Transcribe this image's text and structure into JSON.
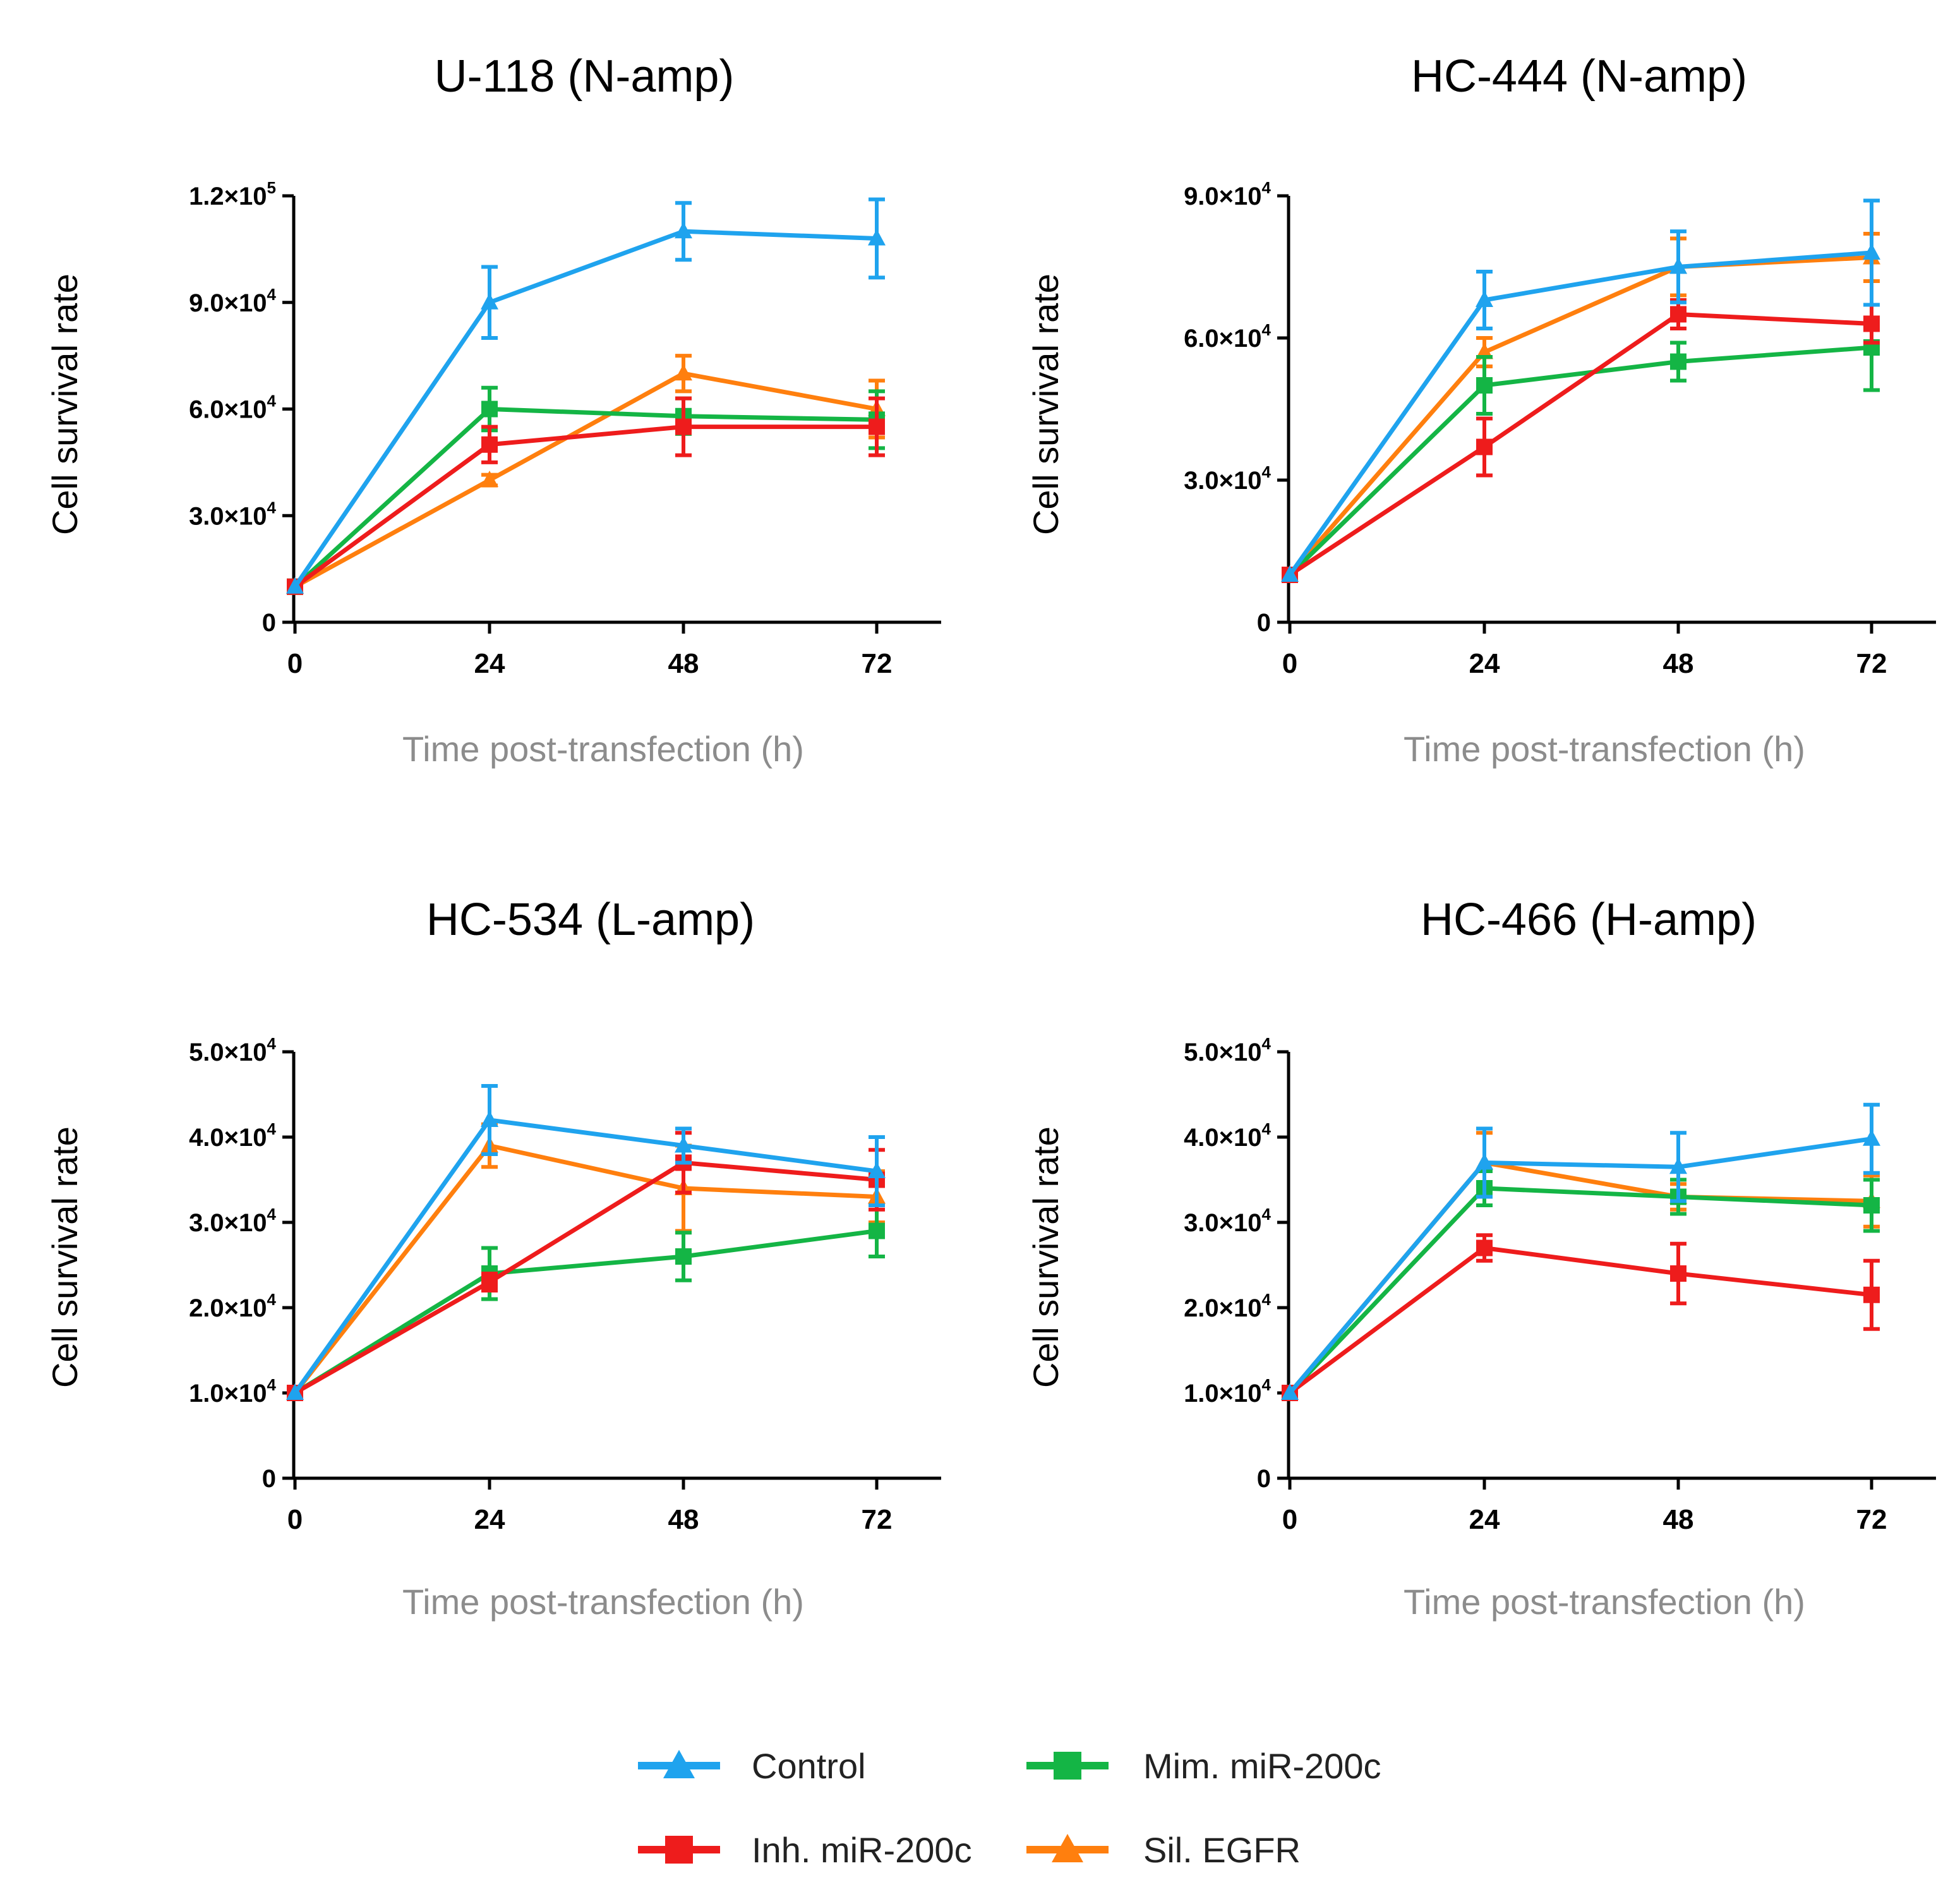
{
  "figure": {
    "xlabel": "Time post-transfection (h)",
    "ylabel": "Cell survival rate",
    "legend": [
      {
        "name": "Control",
        "color": "#1fa3ee",
        "marker": "triangle"
      },
      {
        "name": "Mim. miR-200c",
        "color": "#14b545",
        "marker": "square"
      },
      {
        "name": "Inh. miR-200c",
        "color": "#ee1c1c",
        "marker": "square"
      },
      {
        "name": "Sil. EGFR",
        "color": "#ff7f0e",
        "marker": "triangle"
      }
    ]
  },
  "chart_data": [
    {
      "type": "line",
      "title": "U-118 (N-amp)",
      "xlabel": "Time post-transfection (h)",
      "ylabel": "Cell survival rate",
      "x": [
        0,
        24,
        48,
        72
      ],
      "xticks": [
        "0",
        "24",
        "48",
        "72"
      ],
      "ylim": [
        0,
        120000
      ],
      "yticks": [
        {
          "value": 0,
          "mant": "0",
          "exp": ""
        },
        {
          "value": 30000,
          "mant": "3.0×10",
          "exp": "4"
        },
        {
          "value": 60000,
          "mant": "6.0×10",
          "exp": "4"
        },
        {
          "value": 90000,
          "mant": "9.0×10",
          "exp": "4"
        },
        {
          "value": 120000,
          "mant": "1.2×10",
          "exp": "5"
        }
      ],
      "series": [
        {
          "name": "Sil. EGFR",
          "values": [
            10000,
            40000,
            70000,
            60000
          ],
          "errors": [
            0,
            1500,
            5000,
            8000
          ]
        },
        {
          "name": "Mim. miR-200c",
          "values": [
            10000,
            60000,
            58000,
            57000
          ],
          "errors": [
            0,
            6000,
            5000,
            8000
          ]
        },
        {
          "name": "Inh. miR-200c",
          "values": [
            10000,
            50000,
            55000,
            55000
          ],
          "errors": [
            0,
            5000,
            8000,
            8000
          ]
        },
        {
          "name": "Control",
          "values": [
            10000,
            90000,
            110000,
            108000
          ],
          "errors": [
            0,
            10000,
            8000,
            11000
          ]
        }
      ]
    },
    {
      "type": "line",
      "title": "HC-444 (N-amp)",
      "xlabel": "Time post-transfection (h)",
      "ylabel": "Cell survival rate",
      "x": [
        0,
        24,
        48,
        72
      ],
      "xticks": [
        "0",
        "24",
        "48",
        "72"
      ],
      "ylim": [
        0,
        90000
      ],
      "yticks": [
        {
          "value": 0,
          "mant": "0",
          "exp": ""
        },
        {
          "value": 30000,
          "mant": "3.0×10",
          "exp": "4"
        },
        {
          "value": 60000,
          "mant": "6.0×10",
          "exp": "4"
        },
        {
          "value": 90000,
          "mant": "9.0×10",
          "exp": "4"
        }
      ],
      "series": [
        {
          "name": "Sil. EGFR",
          "values": [
            10000,
            57000,
            75000,
            77000
          ],
          "errors": [
            0,
            3000,
            6000,
            5000
          ]
        },
        {
          "name": "Mim. miR-200c",
          "values": [
            10000,
            50000,
            55000,
            58000
          ],
          "errors": [
            0,
            6000,
            4000,
            9000
          ]
        },
        {
          "name": "Inh. miR-200c",
          "values": [
            10000,
            37000,
            65000,
            63000
          ],
          "errors": [
            0,
            6000,
            3000,
            4000
          ]
        },
        {
          "name": "Control",
          "values": [
            10000,
            68000,
            75000,
            78000
          ],
          "errors": [
            0,
            6000,
            7500,
            11000
          ]
        }
      ]
    },
    {
      "type": "line",
      "title": "HC-534 (L-amp)",
      "xlabel": "Time post-transfection (h)",
      "ylabel": "Cell survival rate",
      "x": [
        0,
        24,
        48,
        72
      ],
      "xticks": [
        "0",
        "24",
        "48",
        "72"
      ],
      "ylim": [
        0,
        50000
      ],
      "yticks": [
        {
          "value": 0,
          "mant": "0",
          "exp": ""
        },
        {
          "value": 10000,
          "mant": "1.0×10",
          "exp": "4"
        },
        {
          "value": 20000,
          "mant": "2.0×10",
          "exp": "4"
        },
        {
          "value": 30000,
          "mant": "3.0×10",
          "exp": "4"
        },
        {
          "value": 40000,
          "mant": "4.0×10",
          "exp": "4"
        },
        {
          "value": 50000,
          "mant": "5.0×10",
          "exp": "4"
        }
      ],
      "series": [
        {
          "name": "Sil. EGFR",
          "values": [
            10000,
            39000,
            34000,
            33000
          ],
          "errors": [
            0,
            2500,
            5000,
            3000
          ]
        },
        {
          "name": "Mim. miR-200c",
          "values": [
            10000,
            24000,
            26000,
            29000
          ],
          "errors": [
            0,
            3000,
            2800,
            3000
          ]
        },
        {
          "name": "Inh. miR-200c",
          "values": [
            10000,
            23000,
            37000,
            35000
          ],
          "errors": [
            0,
            1000,
            3500,
            3500
          ]
        },
        {
          "name": "Control",
          "values": [
            10000,
            42000,
            39000,
            36000
          ],
          "errors": [
            0,
            4000,
            2000,
            4000
          ]
        }
      ]
    },
    {
      "type": "line",
      "title": "HC-466 (H-amp)",
      "xlabel": "Time post-transfection (h)",
      "ylabel": "Cell survival rate",
      "x": [
        0,
        24,
        48,
        72
      ],
      "xticks": [
        "0",
        "24",
        "48",
        "72"
      ],
      "ylim": [
        0,
        50000
      ],
      "yticks": [
        {
          "value": 0,
          "mant": "0",
          "exp": ""
        },
        {
          "value": 10000,
          "mant": "1.0×10",
          "exp": "4"
        },
        {
          "value": 20000,
          "mant": "2.0×10",
          "exp": "4"
        },
        {
          "value": 30000,
          "mant": "3.0×10",
          "exp": "4"
        },
        {
          "value": 40000,
          "mant": "4.0×10",
          "exp": "4"
        },
        {
          "value": 50000,
          "mant": "5.0×10",
          "exp": "4"
        }
      ],
      "series": [
        {
          "name": "Sil. EGFR",
          "values": [
            10000,
            37000,
            33000,
            32500
          ],
          "errors": [
            0,
            3500,
            1500,
            3000
          ]
        },
        {
          "name": "Mim. miR-200c",
          "values": [
            10000,
            34000,
            33000,
            32000
          ],
          "errors": [
            0,
            2000,
            2000,
            3000
          ]
        },
        {
          "name": "Inh. miR-200c",
          "values": [
            10000,
            27000,
            24000,
            21500
          ],
          "errors": [
            0,
            1500,
            3500,
            4000
          ]
        },
        {
          "name": "Control",
          "values": [
            10000,
            37000,
            36500,
            39800
          ],
          "errors": [
            0,
            4000,
            4000,
            4000
          ]
        }
      ]
    }
  ]
}
